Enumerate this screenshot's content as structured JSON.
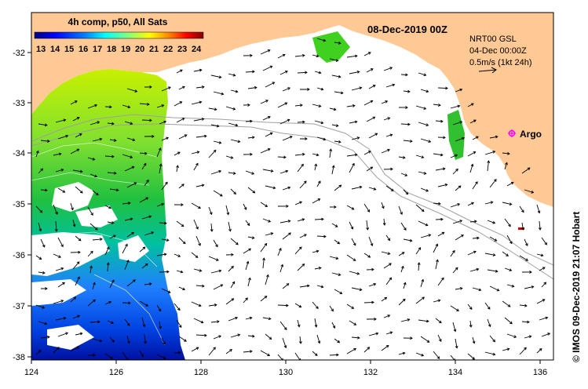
{
  "title_left": "4h comp, p50, All Sats",
  "title_date": "08-Dec-2019 00Z",
  "colorbar": {
    "ticks": [
      "13",
      "14",
      "15",
      "16",
      "17",
      "18",
      "19",
      "20",
      "21",
      "22",
      "23",
      "24"
    ],
    "colors": [
      "#00007f",
      "#0000ff",
      "#0080ff",
      "#00ffff",
      "#80ff80",
      "#ffff00",
      "#ff8000",
      "#ff0000",
      "#7f0000"
    ]
  },
  "legend": {
    "line1": "NRT00 GSL",
    "line2": "04-Dec 00:00Z",
    "line3": "0.5m/s (1kt 24h)"
  },
  "argo_label": "Argo",
  "credit": "© IMOS 09-Dec-2019 21:07 Hobart",
  "x_ticks": [
    "124",
    "126",
    "128",
    "130",
    "132",
    "134",
    "136"
  ],
  "y_ticks": [
    "-32",
    "-33",
    "-34",
    "-35",
    "-36",
    "-37",
    "-38"
  ],
  "colors": {
    "land": "#fec994",
    "ocean": "#ffffff",
    "contour": "#a0a0a0",
    "argo": "#ff00ff"
  }
}
